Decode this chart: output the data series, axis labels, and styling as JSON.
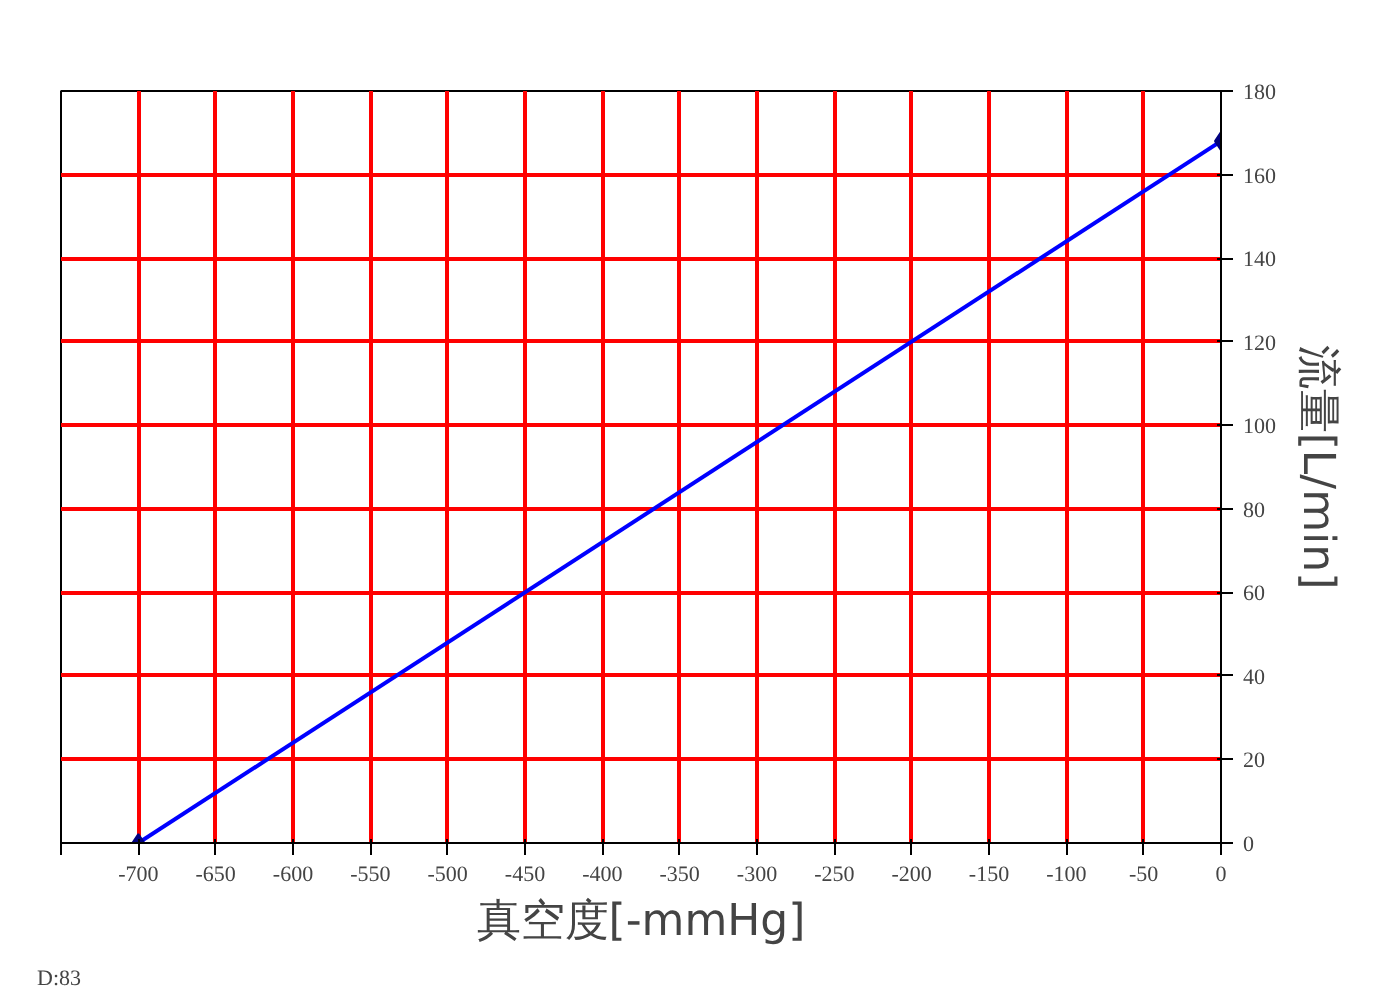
{
  "chart_data": {
    "type": "line",
    "xlabel": "真空度[-mmHg]",
    "ylabel": "流量[L/min]",
    "x": [
      -700,
      0
    ],
    "series": [
      {
        "color": "#0000ff",
        "values": [
          0,
          168
        ]
      }
    ],
    "xlim": [
      -750,
      0
    ],
    "ylim": [
      0,
      180
    ],
    "annotations": [
      "D:83"
    ],
    "xticks": [
      {
        "value": -750,
        "label": null
      },
      -700,
      -650,
      -600,
      -550,
      -500,
      -450,
      -400,
      -350,
      -300,
      -250,
      -200,
      -150,
      -100,
      -50,
      0
    ],
    "yticks": [
      0,
      20,
      40,
      60,
      80,
      100,
      120,
      140,
      160,
      180
    ],
    "grid": true,
    "marker": "diamond",
    "line_style": "solid"
  }
}
